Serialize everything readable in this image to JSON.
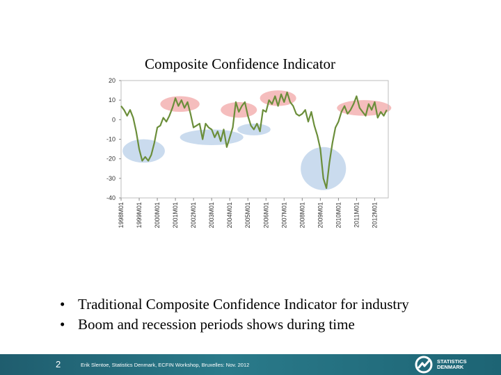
{
  "chart_data": {
    "type": "line",
    "title": "Composite Confidence Indicator",
    "xlabel": "",
    "ylabel": "",
    "ylim": [
      -40,
      20
    ],
    "yticks": [
      20,
      10,
      0,
      -10,
      -20,
      -30,
      -40
    ],
    "categories": [
      "1998M01",
      "1999M01",
      "2000M01",
      "2001M01",
      "2002M01",
      "2003M01",
      "2004M01",
      "2005M01",
      "2006M01",
      "2007M01",
      "2008M01",
      "2009M01",
      "2010M01",
      "2011M01",
      "2012M01"
    ],
    "grid": false,
    "line_color": "#6b8e3a",
    "series": [
      {
        "name": "",
        "points": [
          [
            "1998M01",
            7
          ],
          [
            "1998M03",
            5
          ],
          [
            "1998M05",
            2
          ],
          [
            "1998M07",
            5
          ],
          [
            "1998M09",
            1
          ],
          [
            "1998M11",
            -6
          ],
          [
            "1999M01",
            -15
          ],
          [
            "1999M03",
            -21
          ],
          [
            "1999M05",
            -19
          ],
          [
            "1999M07",
            -21
          ],
          [
            "1999M09",
            -18
          ],
          [
            "1999M11",
            -12
          ],
          [
            "2000M01",
            -4
          ],
          [
            "2000M03",
            -3
          ],
          [
            "2000M05",
            1
          ],
          [
            "2000M07",
            -1
          ],
          [
            "2000M09",
            2
          ],
          [
            "2000M11",
            6
          ],
          [
            "2001M01",
            11
          ],
          [
            "2001M03",
            7
          ],
          [
            "2001M05",
            10
          ],
          [
            "2001M07",
            6
          ],
          [
            "2001M09",
            9
          ],
          [
            "2001M11",
            3
          ],
          [
            "2002M01",
            -4
          ],
          [
            "2002M03",
            -3
          ],
          [
            "2002M05",
            -2
          ],
          [
            "2002M07",
            -10
          ],
          [
            "2002M09",
            -2
          ],
          [
            "2002M11",
            -4
          ],
          [
            "2003M01",
            -5
          ],
          [
            "2003M03",
            -9
          ],
          [
            "2003M05",
            -6
          ],
          [
            "2003M07",
            -11
          ],
          [
            "2003M09",
            -5
          ],
          [
            "2003M11",
            -14
          ],
          [
            "2004M01",
            -9
          ],
          [
            "2004M03",
            -4
          ],
          [
            "2004M05",
            9
          ],
          [
            "2004M07",
            4
          ],
          [
            "2004M09",
            7
          ],
          [
            "2004M11",
            9
          ],
          [
            "2005M01",
            2
          ],
          [
            "2005M03",
            -3
          ],
          [
            "2005M05",
            -5
          ],
          [
            "2005M07",
            -2
          ],
          [
            "2005M09",
            -6
          ],
          [
            "2005M11",
            5
          ],
          [
            "2006M01",
            4
          ],
          [
            "2006M03",
            10
          ],
          [
            "2006M05",
            8
          ],
          [
            "2006M07",
            12
          ],
          [
            "2006M09",
            7
          ],
          [
            "2006M11",
            13
          ],
          [
            "2007M01",
            9
          ],
          [
            "2007M03",
            14
          ],
          [
            "2007M05",
            9
          ],
          [
            "2007M07",
            7
          ],
          [
            "2007M09",
            3
          ],
          [
            "2007M11",
            2
          ],
          [
            "2008M01",
            3
          ],
          [
            "2008M03",
            5
          ],
          [
            "2008M05",
            -1
          ],
          [
            "2008M07",
            4
          ],
          [
            "2008M09",
            -3
          ],
          [
            "2008M11",
            -8
          ],
          [
            "2009M01",
            -15
          ],
          [
            "2009M03",
            -30
          ],
          [
            "2009M05",
            -35
          ],
          [
            "2009M07",
            -22
          ],
          [
            "2009M09",
            -12
          ],
          [
            "2009M11",
            -4
          ],
          [
            "2010M01",
            -1
          ],
          [
            "2010M03",
            4
          ],
          [
            "2010M05",
            7
          ],
          [
            "2010M07",
            3
          ],
          [
            "2010M09",
            5
          ],
          [
            "2010M11",
            8
          ],
          [
            "2011M01",
            12
          ],
          [
            "2011M03",
            6
          ],
          [
            "2011M05",
            4
          ],
          [
            "2011M07",
            2
          ],
          [
            "2011M09",
            8
          ],
          [
            "2011M11",
            5
          ],
          [
            "2012M01",
            9
          ],
          [
            "2012M03",
            1
          ],
          [
            "2012M05",
            4
          ],
          [
            "2012M07",
            2
          ],
          [
            "2012M09",
            5
          ]
        ]
      }
    ],
    "highlights": [
      {
        "kind": "boom",
        "color": "#f2a7a7",
        "center": [
          "2001M04",
          8
        ],
        "radius_x_months": 13,
        "radius_y": 4
      },
      {
        "kind": "boom",
        "color": "#f2a7a7",
        "center": [
          "2004M07",
          5
        ],
        "radius_x_months": 12,
        "radius_y": 4
      },
      {
        "kind": "boom",
        "color": "#f2a7a7",
        "center": [
          "2006M09",
          11
        ],
        "radius_x_months": 12,
        "radius_y": 4
      },
      {
        "kind": "boom",
        "color": "#f2a7a7",
        "center": [
          "2011M06",
          6
        ],
        "radius_x_months": 18,
        "radius_y": 4
      },
      {
        "kind": "recession",
        "color": "#b8cfe8",
        "center": [
          "1999M04",
          -16
        ],
        "radius_x_months": 14,
        "radius_y": 6
      },
      {
        "kind": "recession",
        "color": "#b8cfe8",
        "center": [
          "2003M01",
          -9
        ],
        "radius_x_months": 21,
        "radius_y": 4
      },
      {
        "kind": "recession",
        "color": "#b8cfe8",
        "center": [
          "2005M05",
          -5
        ],
        "radius_x_months": 11,
        "radius_y": 3
      },
      {
        "kind": "recession",
        "color": "#b8cfe8",
        "center": [
          "2009M03",
          -25
        ],
        "radius_x_months": 15,
        "radius_y": 11
      }
    ]
  },
  "bullets": [
    "Traditional Composite Confidence Indicator for industry",
    "Boom and recession periods shows during time"
  ],
  "bullet_glyph": "•",
  "footer": {
    "page_number": "2",
    "text": "Erik Slentoe, Statistics Denmark, ECFIN Workshop, Bruxelles: Nov. 2012",
    "logo_line1": "STATISTICS",
    "logo_line2": "DENMARK"
  }
}
